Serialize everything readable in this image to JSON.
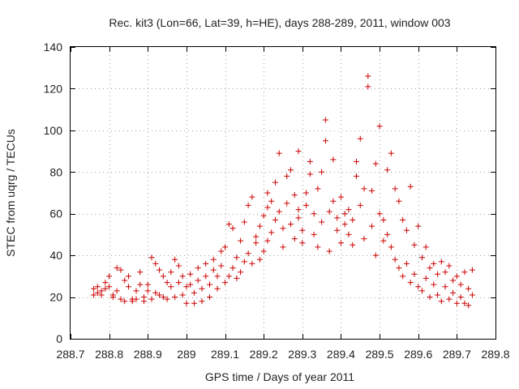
{
  "chart_data": {
    "type": "scatter",
    "title": "Rec. kit3 (Lon=66, Lat=39, h=HE), days 288-289, 2011, window 003",
    "xlabel": "GPS time / Days of year 2011",
    "ylabel": "STEC from uqrg / TECUs",
    "xlim": [
      288.7,
      289.8
    ],
    "ylim": [
      0,
      140
    ],
    "xticks": [
      288.7,
      288.8,
      288.9,
      289.0,
      289.1,
      289.2,
      289.3,
      289.4,
      289.5,
      289.6,
      289.7,
      289.8
    ],
    "xtick_labels": [
      "288.7",
      "288.8",
      "288.9",
      "289",
      "289.1",
      "289.2",
      "289.3",
      "289.4",
      "289.5",
      "289.6",
      "289.7",
      "289.8"
    ],
    "yticks": [
      0,
      20,
      40,
      60,
      80,
      100,
      120,
      140
    ],
    "ytick_labels": [
      "0",
      "20",
      "40",
      "60",
      "80",
      "100",
      "120",
      "140"
    ],
    "grid": true,
    "marker": "+",
    "color": "#cc0000",
    "series": [
      {
        "name": "STEC",
        "points": [
          [
            288.76,
            21
          ],
          [
            288.76,
            24
          ],
          [
            288.77,
            22
          ],
          [
            288.77,
            25
          ],
          [
            288.78,
            23
          ],
          [
            288.78,
            21
          ],
          [
            288.79,
            24
          ],
          [
            288.79,
            27
          ],
          [
            288.8,
            25
          ],
          [
            288.8,
            30
          ],
          [
            288.81,
            21
          ],
          [
            288.81,
            20
          ],
          [
            288.82,
            34
          ],
          [
            288.82,
            23
          ],
          [
            288.83,
            19
          ],
          [
            288.83,
            33
          ],
          [
            288.84,
            28
          ],
          [
            288.84,
            18
          ],
          [
            288.85,
            30
          ],
          [
            288.85,
            25
          ],
          [
            288.86,
            19
          ],
          [
            288.86,
            18
          ],
          [
            288.87,
            23
          ],
          [
            288.87,
            19
          ],
          [
            288.88,
            32
          ],
          [
            288.88,
            26
          ],
          [
            288.89,
            20
          ],
          [
            288.89,
            18
          ],
          [
            288.9,
            23
          ],
          [
            288.9,
            26
          ],
          [
            288.91,
            39
          ],
          [
            288.91,
            19
          ],
          [
            288.92,
            36
          ],
          [
            288.92,
            22
          ],
          [
            288.93,
            21
          ],
          [
            288.93,
            33
          ],
          [
            288.94,
            20
          ],
          [
            288.94,
            30
          ],
          [
            288.95,
            27
          ],
          [
            288.95,
            19
          ],
          [
            288.96,
            32
          ],
          [
            288.96,
            25
          ],
          [
            288.97,
            38
          ],
          [
            288.97,
            20
          ],
          [
            288.98,
            27
          ],
          [
            288.98,
            35
          ],
          [
            288.99,
            21
          ],
          [
            288.99,
            30
          ],
          [
            289.0,
            17
          ],
          [
            289.0,
            25
          ],
          [
            289.01,
            31
          ],
          [
            289.01,
            26
          ],
          [
            289.02,
            17
          ],
          [
            289.02,
            22
          ],
          [
            289.03,
            28
          ],
          [
            289.03,
            34
          ],
          [
            289.04,
            18
          ],
          [
            289.04,
            24
          ],
          [
            289.05,
            30
          ],
          [
            289.05,
            36
          ],
          [
            289.06,
            20
          ],
          [
            289.06,
            26
          ],
          [
            289.07,
            33
          ],
          [
            289.07,
            38
          ],
          [
            289.08,
            24
          ],
          [
            289.08,
            30
          ],
          [
            289.09,
            35
          ],
          [
            289.09,
            42
          ],
          [
            289.1,
            27
          ],
          [
            289.1,
            44
          ],
          [
            289.11,
            30
          ],
          [
            289.11,
            55
          ],
          [
            289.12,
            34
          ],
          [
            289.12,
            53
          ],
          [
            289.13,
            39
          ],
          [
            289.13,
            29
          ],
          [
            289.14,
            47
          ],
          [
            289.14,
            32
          ],
          [
            289.15,
            37
          ],
          [
            289.15,
            56
          ],
          [
            289.16,
            41
          ],
          [
            289.16,
            64
          ],
          [
            289.17,
            36
          ],
          [
            289.17,
            68
          ],
          [
            289.18,
            46
          ],
          [
            289.18,
            49
          ],
          [
            289.19,
            38
          ],
          [
            289.19,
            54
          ],
          [
            289.2,
            42
          ],
          [
            289.2,
            59
          ],
          [
            289.21,
            63
          ],
          [
            289.21,
            70
          ],
          [
            289.21,
            47
          ],
          [
            289.22,
            51
          ],
          [
            289.22,
            66
          ],
          [
            289.23,
            75
          ],
          [
            289.23,
            57
          ],
          [
            289.24,
            89
          ],
          [
            289.24,
            61
          ],
          [
            289.25,
            44
          ],
          [
            289.25,
            53
          ],
          [
            289.26,
            78
          ],
          [
            289.26,
            65
          ],
          [
            289.27,
            81
          ],
          [
            289.27,
            55
          ],
          [
            289.28,
            69
          ],
          [
            289.28,
            48
          ],
          [
            289.29,
            90
          ],
          [
            289.29,
            62
          ],
          [
            289.29,
            58
          ],
          [
            289.3,
            52
          ],
          [
            289.3,
            46
          ],
          [
            289.31,
            70
          ],
          [
            289.31,
            64
          ],
          [
            289.32,
            85
          ],
          [
            289.32,
            79
          ],
          [
            289.33,
            60
          ],
          [
            289.33,
            50
          ],
          [
            289.34,
            72
          ],
          [
            289.34,
            44
          ],
          [
            289.35,
            80
          ],
          [
            289.35,
            56
          ],
          [
            289.36,
            105
          ],
          [
            289.36,
            95
          ],
          [
            289.37,
            61
          ],
          [
            289.37,
            42
          ],
          [
            289.38,
            86
          ],
          [
            289.38,
            66
          ],
          [
            289.39,
            52
          ],
          [
            289.39,
            58
          ],
          [
            289.4,
            68
          ],
          [
            289.4,
            46
          ],
          [
            289.41,
            60
          ],
          [
            289.41,
            55
          ],
          [
            289.42,
            50
          ],
          [
            289.42,
            62
          ],
          [
            289.43,
            45
          ],
          [
            289.43,
            57
          ],
          [
            289.44,
            85
          ],
          [
            289.44,
            78
          ],
          [
            289.45,
            64
          ],
          [
            289.45,
            96
          ],
          [
            289.46,
            72
          ],
          [
            289.46,
            48
          ],
          [
            289.47,
            126
          ],
          [
            289.47,
            121
          ],
          [
            289.48,
            71
          ],
          [
            289.48,
            54
          ],
          [
            289.49,
            84
          ],
          [
            289.49,
            40
          ],
          [
            289.5,
            102
          ],
          [
            289.5,
            60
          ],
          [
            289.51,
            47
          ],
          [
            289.51,
            57
          ],
          [
            289.52,
            81
          ],
          [
            289.52,
            50
          ],
          [
            289.53,
            89
          ],
          [
            289.53,
            44
          ],
          [
            289.54,
            72
          ],
          [
            289.54,
            38
          ],
          [
            289.55,
            66
          ],
          [
            289.55,
            34
          ],
          [
            289.56,
            57
          ],
          [
            289.56,
            30
          ],
          [
            289.57,
            52
          ],
          [
            289.57,
            36
          ],
          [
            289.58,
            73
          ],
          [
            289.58,
            27
          ],
          [
            289.59,
            45
          ],
          [
            289.59,
            31
          ],
          [
            289.6,
            54
          ],
          [
            289.6,
            25
          ],
          [
            289.61,
            39
          ],
          [
            289.61,
            23
          ],
          [
            289.62,
            44
          ],
          [
            289.62,
            29
          ],
          [
            289.63,
            34
          ],
          [
            289.63,
            20
          ],
          [
            289.64,
            36
          ],
          [
            289.64,
            26
          ],
          [
            289.65,
            31
          ],
          [
            289.65,
            21
          ],
          [
            289.66,
            37
          ],
          [
            289.66,
            18
          ],
          [
            289.67,
            32
          ],
          [
            289.67,
            25
          ],
          [
            289.68,
            35
          ],
          [
            289.68,
            19
          ],
          [
            289.69,
            28
          ],
          [
            289.69,
            22
          ],
          [
            289.7,
            30
          ],
          [
            289.7,
            17
          ],
          [
            289.71,
            26
          ],
          [
            289.71,
            20
          ],
          [
            289.72,
            32
          ],
          [
            289.72,
            17
          ],
          [
            289.73,
            24
          ],
          [
            289.73,
            16
          ],
          [
            289.74,
            33
          ],
          [
            289.74,
            21
          ]
        ]
      }
    ]
  }
}
